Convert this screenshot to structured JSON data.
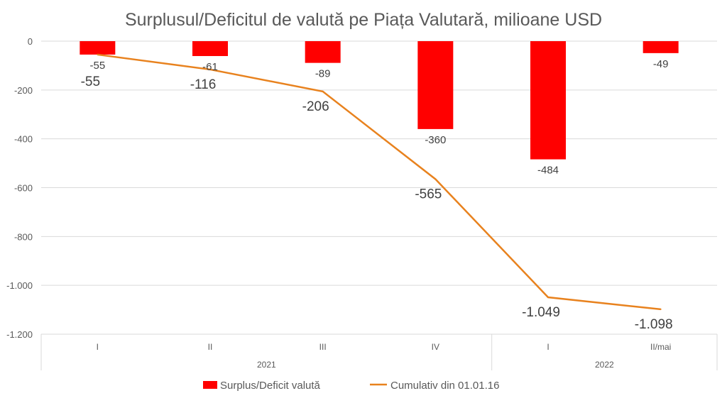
{
  "chart_data": {
    "type": "bar+line",
    "title": "Surplusul/Deficitul de valută pe Piața Valutară, milioane USD",
    "categories": [
      "I",
      "II",
      "III",
      "IV",
      "I",
      "II/mai"
    ],
    "groups": [
      {
        "label": "2021",
        "span": 4
      },
      {
        "label": "2022",
        "span": 2
      }
    ],
    "ylim": [
      -1200,
      0
    ],
    "yticks": [
      0,
      -200,
      -400,
      -600,
      -800,
      -1000,
      -1200
    ],
    "ytick_labels": [
      "0",
      "-200",
      "-400",
      "-600",
      "-800",
      "-1.000",
      "-1.200"
    ],
    "grid": true,
    "legend_position": "bottom",
    "series": [
      {
        "name": "Surplus/Deficit valută",
        "type": "bar",
        "color": "#FF0000",
        "values": [
          -55,
          -61,
          -89,
          -360,
          -484,
          -49
        ],
        "labels": [
          "-55",
          "-61",
          "-89",
          "-360",
          "-484",
          "-49"
        ]
      },
      {
        "name": "Cumulativ din 01.01.16",
        "type": "line",
        "color": "#E8821E",
        "values": [
          -55,
          -116,
          -206,
          -565,
          -1049,
          -1098
        ],
        "labels": [
          "-55",
          "-116",
          "-206",
          "-565",
          "-1.049",
          "-1.098"
        ]
      }
    ]
  }
}
